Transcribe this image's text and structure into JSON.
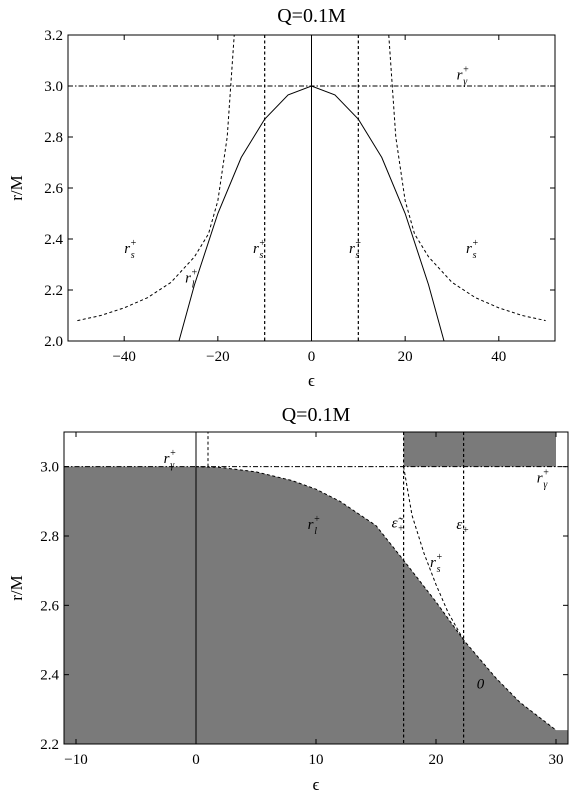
{
  "chart_data": [
    {
      "type": "line",
      "title": "Q=0.1M",
      "xlabel": "ϵ",
      "ylabel": "r/M",
      "xlim": [
        -52,
        52
      ],
      "ylim": [
        2.0,
        3.2
      ],
      "xticks": [
        -40,
        -20,
        0,
        20,
        40
      ],
      "yticks": [
        2.0,
        2.2,
        2.4,
        2.6,
        2.8,
        3.0,
        3.2
      ],
      "xtick_labels": [
        "−40",
        "−20",
        "0",
        "20",
        "40"
      ],
      "ytick_labels": [
        "2.0",
        "2.2",
        "2.4",
        "2.6",
        "2.8",
        "3.0",
        "3.2"
      ],
      "grid": false,
      "series": [
        {
          "name": "r_l^+",
          "style": "solid",
          "x": [
            -28.3,
            -25,
            -20,
            -15,
            -10,
            -5,
            0,
            5,
            10,
            15,
            20,
            25,
            28.3
          ],
          "y": [
            2.0,
            2.22,
            2.5,
            2.72,
            2.87,
            2.965,
            3.0,
            2.965,
            2.87,
            2.72,
            2.5,
            2.22,
            2.0
          ]
        },
        {
          "name": "r_s^+ (left)",
          "style": "dashed",
          "x": [
            -50,
            -45,
            -40,
            -35,
            -30,
            -25,
            -22,
            -20,
            -18,
            -16.5
          ],
          "y": [
            2.08,
            2.1,
            2.13,
            2.17,
            2.23,
            2.33,
            2.42,
            2.55,
            2.8,
            3.2
          ]
        },
        {
          "name": "r_s^+ (right)",
          "style": "dashed",
          "x": [
            16.5,
            18,
            20,
            22,
            25,
            30,
            35,
            40,
            45,
            50
          ],
          "y": [
            3.2,
            2.8,
            2.55,
            2.42,
            2.33,
            2.23,
            2.17,
            2.13,
            2.1,
            2.08
          ]
        },
        {
          "name": "r_γ^+",
          "style": "dash-dot",
          "x": [
            -52,
            52
          ],
          "y": [
            3.0,
            3.0
          ]
        }
      ],
      "vlines": [
        {
          "x": -10,
          "style": "dashed"
        },
        {
          "x": 10,
          "style": "dashed"
        },
        {
          "x": 0,
          "style": "solid"
        }
      ],
      "annotations": [
        {
          "base": "r",
          "sub": "s",
          "sup": "+",
          "x": -40,
          "y": 2.345
        },
        {
          "base": "r",
          "sub": "l",
          "sup": "+",
          "x": -27,
          "y": 2.23
        },
        {
          "base": "r",
          "sub": "s",
          "sup": "+",
          "x": -12.5,
          "y": 2.345
        },
        {
          "base": "r",
          "sub": "s",
          "sup": "+",
          "x": 8,
          "y": 2.345
        },
        {
          "base": "r",
          "sub": "s",
          "sup": "+",
          "x": 33,
          "y": 2.345
        },
        {
          "base": "r",
          "sub": "γ",
          "sup": "+",
          "x": 31,
          "y": 3.025
        }
      ]
    },
    {
      "type": "area",
      "title": "Q=0.1M",
      "xlabel": "ϵ",
      "ylabel": "r/M",
      "xlim": [
        -11,
        31
      ],
      "ylim": [
        2.2,
        3.1
      ],
      "xticks": [
        -10,
        0,
        10,
        20,
        30
      ],
      "yticks": [
        2.2,
        2.4,
        2.6,
        2.8,
        3.0
      ],
      "xtick_labels": [
        "−10",
        "0",
        "10",
        "20",
        "30"
      ],
      "ytick_labels": [
        "2.2",
        "2.4",
        "2.6",
        "2.8",
        "3.0"
      ],
      "grid": false,
      "fill_color": "#7a7a7a",
      "upper_fill": {
        "x": [
          17.3,
          30
        ],
        "y": [
          3.0,
          3.1
        ]
      },
      "series": [
        {
          "name": "r_l^+",
          "style": "dashed",
          "x": [
            0,
            2,
            5,
            8,
            10,
            12,
            15,
            17.3,
            20,
            22.3,
            25,
            27,
            30
          ],
          "y": [
            3.0,
            2.998,
            2.985,
            2.96,
            2.935,
            2.9,
            2.83,
            2.73,
            2.61,
            2.5,
            2.39,
            2.32,
            2.24
          ]
        },
        {
          "name": "r_s^+",
          "style": "dashed",
          "x": [
            17.3,
            18,
            19,
            20,
            21,
            22.3
          ],
          "y": [
            3.0,
            2.86,
            2.75,
            2.66,
            2.58,
            2.5
          ]
        },
        {
          "name": "r_γ^+",
          "style": "dash-dot",
          "x": [
            -11,
            31
          ],
          "y": [
            3.0,
            3.0
          ]
        },
        {
          "name": "r_s^+ (near axis)",
          "style": "dashed",
          "x": [
            1.0,
            1.0
          ],
          "y": [
            3.0,
            3.1
          ]
        }
      ],
      "vlines": [
        {
          "x": 0,
          "style": "solid"
        },
        {
          "x": 17.3,
          "style": "dashed"
        },
        {
          "x": 22.3,
          "style": "dashed"
        }
      ],
      "annotations": [
        {
          "base": "r",
          "sub": "γ",
          "sup": "+",
          "x": -2.7,
          "y": 3.01
        },
        {
          "base": "r",
          "sub": "l",
          "sup": "+",
          "x": 9.3,
          "y": 2.82
        },
        {
          "base": "ε̃",
          "sub": "+",
          "sup": "",
          "x": 16.3,
          "y": 2.825
        },
        {
          "base": "r",
          "sub": "s",
          "sup": "+",
          "x": 19.5,
          "y": 2.71
        },
        {
          "base": "ε",
          "sub": "+",
          "sup": "",
          "x": 21.7,
          "y": 2.82
        },
        {
          "base": "r",
          "sub": "γ",
          "sup": "+",
          "x": 28.4,
          "y": 2.955
        },
        {
          "base": "0",
          "sub": "",
          "sup": "",
          "x": 23.4,
          "y": 2.36
        }
      ]
    }
  ]
}
